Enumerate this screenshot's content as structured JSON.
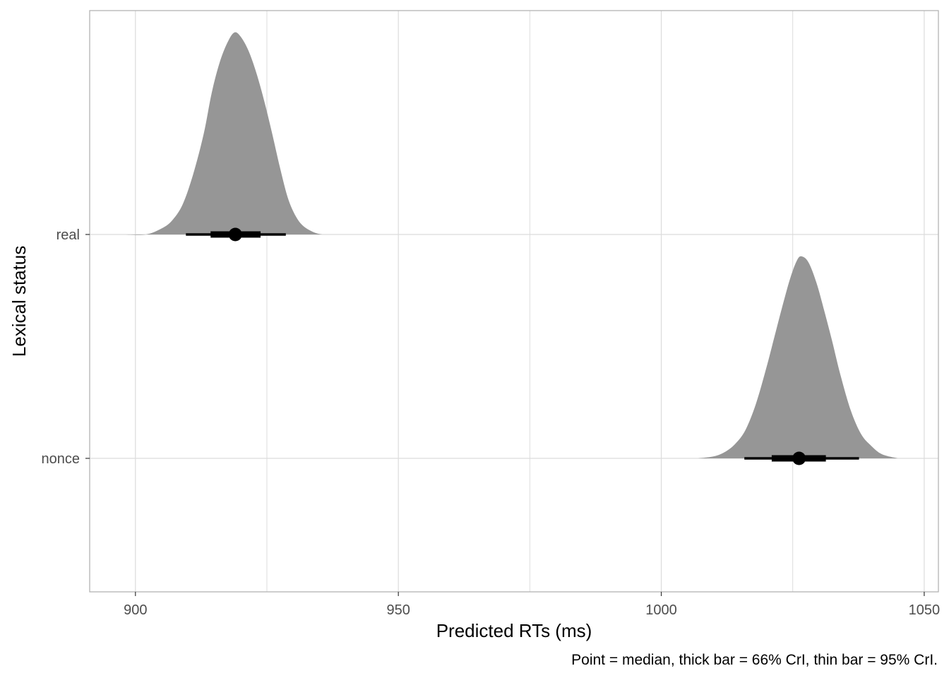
{
  "chart_data": {
    "type": "halfeye",
    "xlabel": "Predicted RTs (ms)",
    "ylabel": "Lexical status",
    "caption": "Point = median, thick bar = 66% CrI, thin bar = 95% CrI.",
    "xlim": [
      891.3,
      1052.7
    ],
    "x_ticks": [
      900,
      950,
      1000,
      1050
    ],
    "x_tick_labels": [
      "900",
      "950",
      "1000",
      "1050"
    ],
    "x_minor_ticks": [
      925,
      975,
      1025
    ],
    "categories": [
      "real",
      "nonce"
    ],
    "grid": true,
    "series": [
      {
        "category": "real",
        "median": 919.0,
        "ci66": [
          914.3,
          923.8
        ],
        "ci95": [
          909.6,
          928.6
        ],
        "density_range": [
          898.0,
          935.5
        ],
        "density_curve": [
          [
            898.0,
            0.0
          ],
          [
            902.0,
            0.0
          ],
          [
            905.0,
            0.03
          ],
          [
            907.0,
            0.07
          ],
          [
            909.0,
            0.15
          ],
          [
            911.0,
            0.3
          ],
          [
            913.0,
            0.5
          ],
          [
            914.5,
            0.7
          ],
          [
            916.0,
            0.85
          ],
          [
            917.5,
            0.95
          ],
          [
            918.8,
            1.0
          ],
          [
            920.0,
            0.98
          ],
          [
            921.5,
            0.91
          ],
          [
            923.0,
            0.8
          ],
          [
            924.5,
            0.66
          ],
          [
            926.0,
            0.5
          ],
          [
            927.5,
            0.33
          ],
          [
            929.0,
            0.18
          ],
          [
            930.5,
            0.09
          ],
          [
            932.0,
            0.04
          ],
          [
            934.0,
            0.01
          ],
          [
            935.5,
            0.0
          ]
        ]
      },
      {
        "category": "nonce",
        "median": 1026.2,
        "ci66": [
          1021.0,
          1031.3
        ],
        "ci95": [
          1015.8,
          1037.6
        ],
        "density_range": [
          1007.0,
          1045.0
        ],
        "density_curve": [
          [
            1007.0,
            0.0
          ],
          [
            1010.0,
            0.01
          ],
          [
            1012.0,
            0.03
          ],
          [
            1014.0,
            0.07
          ],
          [
            1016.0,
            0.14
          ],
          [
            1018.0,
            0.27
          ],
          [
            1020.0,
            0.45
          ],
          [
            1021.5,
            0.6
          ],
          [
            1023.0,
            0.75
          ],
          [
            1024.5,
            0.89
          ],
          [
            1025.8,
            0.98
          ],
          [
            1026.7,
            1.0
          ],
          [
            1028.0,
            0.97
          ],
          [
            1029.5,
            0.87
          ],
          [
            1031.0,
            0.73
          ],
          [
            1032.5,
            0.58
          ],
          [
            1034.0,
            0.42
          ],
          [
            1036.0,
            0.24
          ],
          [
            1038.0,
            0.12
          ],
          [
            1040.0,
            0.06
          ],
          [
            1042.0,
            0.02
          ],
          [
            1045.0,
            0.0
          ]
        ]
      }
    ],
    "colors": {
      "density_fill": "#969696",
      "interval": "#000000",
      "grid": "#dcdcdc",
      "panel_border": "#b3b3b3",
      "tick_text": "#4d4d4d"
    }
  }
}
